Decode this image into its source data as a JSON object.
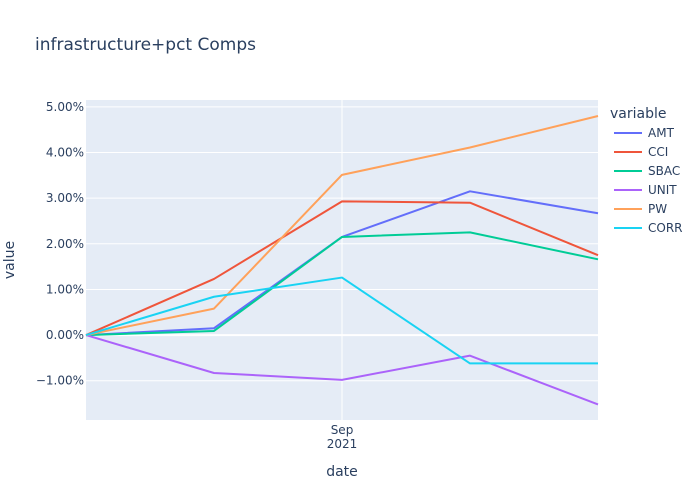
{
  "chart_data": {
    "type": "line",
    "title": "infrastructure+pct Comps",
    "xlabel": "date",
    "ylabel": "value",
    "x_tick": {
      "label_line1": "Sep",
      "label_line2": "2021"
    },
    "ylim": [
      -0.0186,
      0.0515
    ],
    "yticks": [
      {
        "value": -0.01,
        "label": "−1.00%"
      },
      {
        "value": 0.0,
        "label": "0.00%"
      },
      {
        "value": 0.01,
        "label": "1.00%"
      },
      {
        "value": 0.02,
        "label": "2.00%"
      },
      {
        "value": 0.03,
        "label": "3.00%"
      },
      {
        "value": 0.04,
        "label": "4.00%"
      },
      {
        "value": 0.05,
        "label": "5.00%"
      }
    ],
    "legend_title": "variable",
    "legend_position": "right",
    "x": [
      0,
      1,
      2,
      3,
      4
    ],
    "series": [
      {
        "name": "AMT",
        "color": "#636efa",
        "values": [
          0.0,
          0.0015,
          0.0215,
          0.0315,
          0.0267
        ]
      },
      {
        "name": "CCI",
        "color": "#EF553B",
        "values": [
          0.0,
          0.0123,
          0.0293,
          0.029,
          0.0175
        ]
      },
      {
        "name": "SBAC",
        "color": "#00cc96",
        "values": [
          0.0,
          0.0009,
          0.0215,
          0.0225,
          0.0166
        ]
      },
      {
        "name": "UNIT",
        "color": "#ab63fa",
        "values": [
          0.0,
          -0.0083,
          -0.0098,
          -0.0045,
          -0.0152
        ]
      },
      {
        "name": "PW",
        "color": "#FFA15A",
        "values": [
          0.0,
          0.0058,
          0.0351,
          0.0411,
          0.048
        ]
      },
      {
        "name": "CORR",
        "color": "#19d3f3",
        "values": [
          0.0,
          0.0084,
          0.0126,
          -0.0062,
          -0.0062
        ]
      }
    ]
  }
}
